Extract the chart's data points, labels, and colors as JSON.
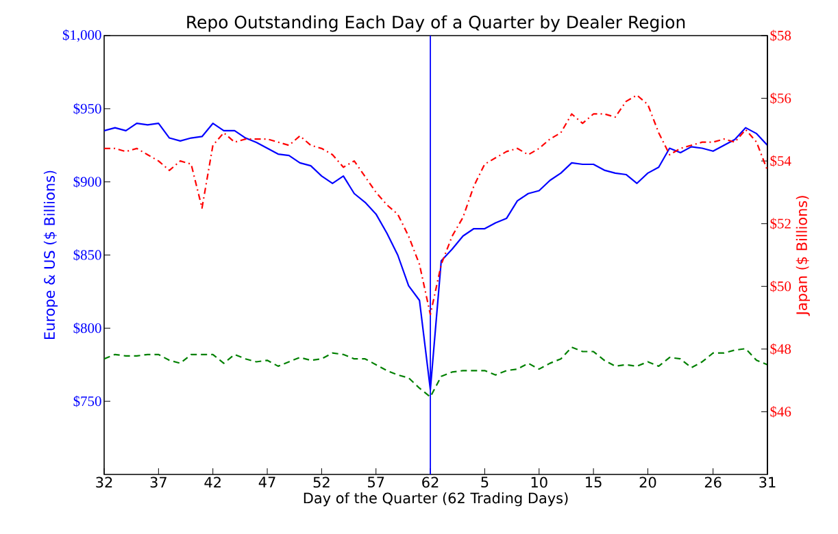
{
  "chart_data": {
    "type": "line",
    "title": "Repo Outstanding Each Day of a Quarter by Dealer Region",
    "xlabel": "Day of the Quarter (62 Trading Days)",
    "ylabel": "Europe & US ($ Billions)",
    "y2label": "Japan ($ Billions)",
    "categories": [
      "32",
      null,
      null,
      null,
      null,
      "37",
      null,
      null,
      null,
      null,
      "42",
      null,
      null,
      null,
      null,
      "47",
      null,
      null,
      null,
      null,
      "52",
      null,
      null,
      null,
      null,
      "57",
      null,
      null,
      null,
      null,
      "62",
      null,
      null,
      null,
      null,
      "5",
      null,
      null,
      null,
      null,
      "10",
      null,
      null,
      null,
      null,
      "15",
      null,
      null,
      null,
      null,
      "20",
      null,
      null,
      null,
      null,
      null,
      "26",
      null,
      null,
      null,
      null,
      "31"
    ],
    "ylim": [
      700,
      1000
    ],
    "yticks": [
      {
        "value": 750,
        "label": "$750"
      },
      {
        "value": 800,
        "label": "$800"
      },
      {
        "value": 850,
        "label": "$850"
      },
      {
        "value": 900,
        "label": "$900"
      },
      {
        "value": 950,
        "label": "$950"
      },
      {
        "value": 1000,
        "label": "$1,000"
      }
    ],
    "y2lim": [
      44,
      58
    ],
    "y2ticks": [
      {
        "value": 46,
        "label": "$46"
      },
      {
        "value": 48,
        "label": "$48"
      },
      {
        "value": 50,
        "label": "$50"
      },
      {
        "value": 52,
        "label": "$52"
      },
      {
        "value": 54,
        "label": "$54"
      },
      {
        "value": 56,
        "label": "$56"
      },
      {
        "value": 58,
        "label": "$58"
      }
    ],
    "series": [
      {
        "color": "#0000ff",
        "line_style": "solid",
        "values": [
          935,
          937,
          935,
          940,
          939,
          940,
          930,
          928,
          930,
          931,
          940,
          935,
          935,
          930,
          927,
          923,
          919,
          918,
          913,
          911,
          904,
          899,
          904,
          892,
          886,
          878,
          865,
          850,
          829,
          819,
          758,
          846,
          854,
          863,
          868,
          868,
          872,
          875,
          887,
          892,
          894,
          901,
          906,
          913,
          912,
          912,
          908,
          906,
          905,
          899,
          906,
          910,
          923,
          920,
          924,
          923,
          921,
          925,
          929,
          937,
          933,
          925
        ]
      },
      {
        "color": "#ff0000",
        "line_style": "dashdot",
        "axis": "y2",
        "values": [
          54.4,
          54.4,
          54.3,
          54.4,
          54.2,
          54.0,
          53.7,
          54.0,
          53.9,
          52.5,
          54.5,
          54.9,
          54.6,
          54.7,
          54.7,
          54.7,
          54.6,
          54.5,
          54.8,
          54.5,
          54.4,
          54.2,
          53.8,
          54.0,
          53.5,
          53.0,
          52.6,
          52.3,
          51.6,
          50.7,
          49.1,
          50.7,
          51.6,
          52.2,
          53.2,
          53.9,
          54.1,
          54.3,
          54.4,
          54.2,
          54.4,
          54.7,
          54.9,
          55.5,
          55.2,
          55.5,
          55.5,
          55.4,
          55.9,
          56.1,
          55.8,
          54.9,
          54.2,
          54.4,
          54.5,
          54.6,
          54.6,
          54.7,
          54.6,
          55.0,
          54.6,
          53.7
        ]
      },
      {
        "color": "#008000",
        "line_style": "dashed",
        "values": [
          779,
          782,
          781,
          781,
          782,
          782,
          778,
          776,
          782,
          782,
          782,
          776,
          782,
          779,
          777,
          778,
          774,
          777,
          780,
          778,
          779,
          783,
          782,
          779,
          779,
          775,
          771,
          768,
          766,
          759,
          753,
          767,
          770,
          771,
          771,
          771,
          768,
          771,
          772,
          776,
          772,
          776,
          779,
          787,
          784,
          784,
          778,
          774,
          775,
          774,
          777,
          774,
          780,
          779,
          773,
          777,
          783,
          783,
          785,
          786,
          778,
          775
        ]
      }
    ],
    "ref_lines": [
      {
        "axis": "x",
        "value": "62",
        "color": "#0000ff"
      }
    ]
  }
}
